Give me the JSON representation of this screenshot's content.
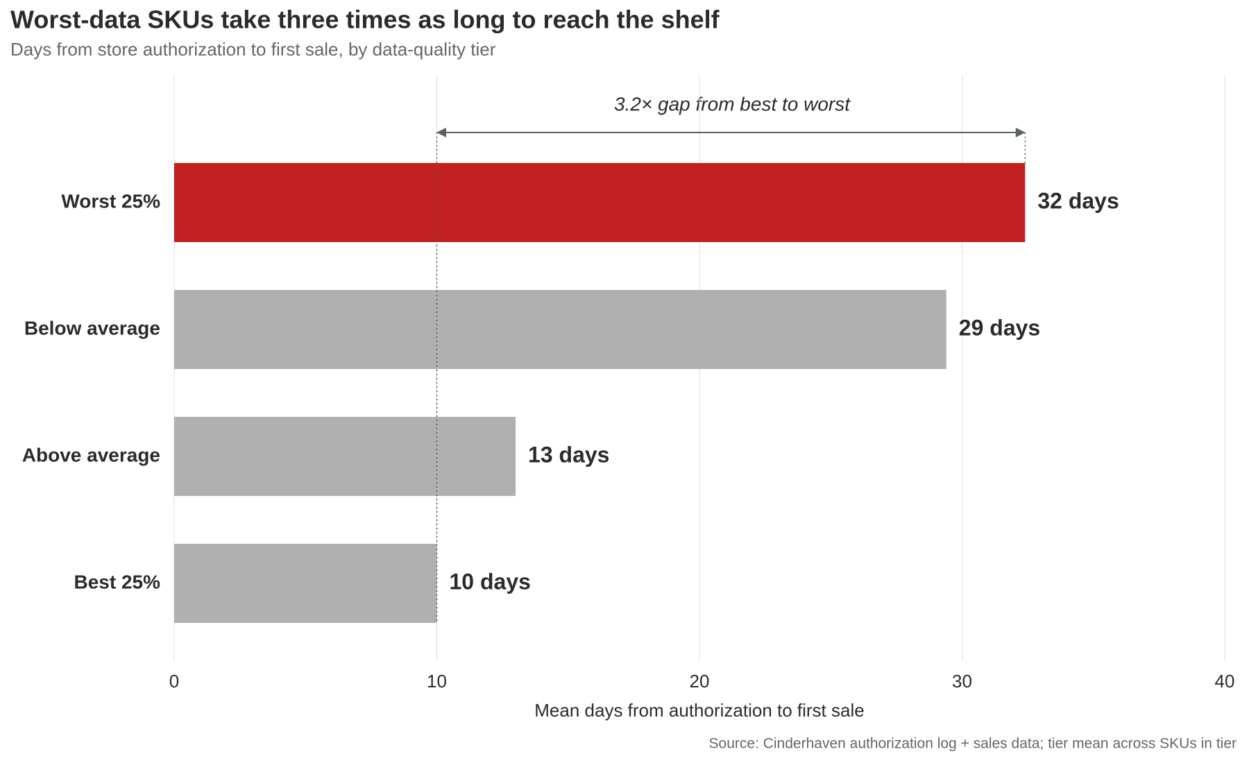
{
  "chart_data": {
    "type": "bar",
    "orientation": "horizontal",
    "title": "Worst-data SKUs take three times as long to reach the shelf",
    "subtitle": "Days from store authorization to first sale, by data-quality tier",
    "categories": [
      "Worst 25%",
      "Below average",
      "Above average",
      "Best 25%"
    ],
    "values": [
      32.4,
      29.4,
      13,
      10
    ],
    "value_labels": [
      "32 days",
      "29 days",
      "13 days",
      "10 days"
    ],
    "colors": [
      "#c0201f",
      "#b0b0b0",
      "#b0b0b0",
      "#b0b0b0"
    ],
    "xlabel": "Mean days from authorization to first sale",
    "xlim": [
      0,
      40
    ],
    "xticks": [
      0,
      10,
      20,
      30,
      40
    ],
    "grid": true,
    "annotation": "3.2× gap from best to worst",
    "source": "Source: Cinderhaven authorization log + sales data; tier mean across SKUs in tier"
  }
}
